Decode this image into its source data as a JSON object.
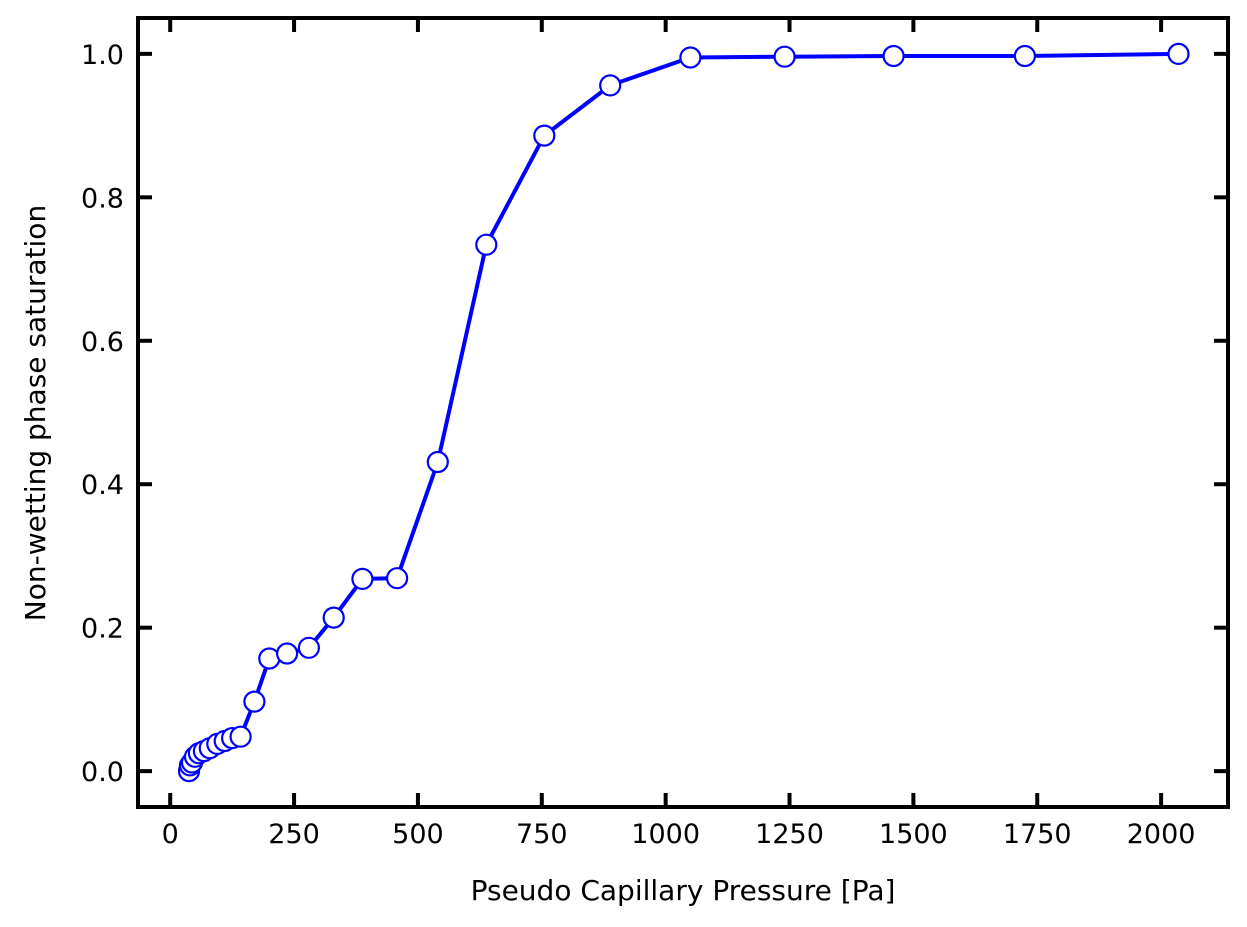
{
  "chart_data": {
    "type": "line",
    "title": "",
    "xlabel": "Pseudo Capillary Pressure [Pa]",
    "ylabel": "Non-wetting phase saturation",
    "xlim": [
      -65,
      2135
    ],
    "ylim": [
      -0.05,
      1.05
    ],
    "xticks": [
      0,
      250,
      500,
      750,
      1000,
      1250,
      1500,
      1750,
      2000
    ],
    "yticks": [
      0.0,
      0.2,
      0.4,
      0.6,
      0.8,
      1.0
    ],
    "xtick_labels": [
      "0",
      "250",
      "500",
      "750",
      "1000",
      "1250",
      "1500",
      "1750",
      "2000"
    ],
    "ytick_labels": [
      "0.0",
      "0.2",
      "0.4",
      "0.6",
      "0.8",
      "1.0"
    ],
    "grid": false,
    "legend": "none",
    "series": [
      {
        "color": "#0000ff",
        "marker": "open-circle",
        "x": [
          38,
          40,
          44,
          50,
          58,
          68,
          80,
          95,
          110,
          125,
          142,
          170,
          200,
          236,
          280,
          330,
          388,
          458,
          540,
          638,
          755,
          888,
          1050,
          1240,
          1460,
          1725,
          2035
        ],
        "y": [
          0.0,
          0.008,
          0.012,
          0.02,
          0.025,
          0.028,
          0.032,
          0.038,
          0.042,
          0.046,
          0.048,
          0.097,
          0.157,
          0.164,
          0.172,
          0.214,
          0.268,
          0.269,
          0.431,
          0.734,
          0.886,
          0.956,
          0.995,
          0.996,
          0.997,
          0.997,
          1.0
        ]
      }
    ]
  }
}
